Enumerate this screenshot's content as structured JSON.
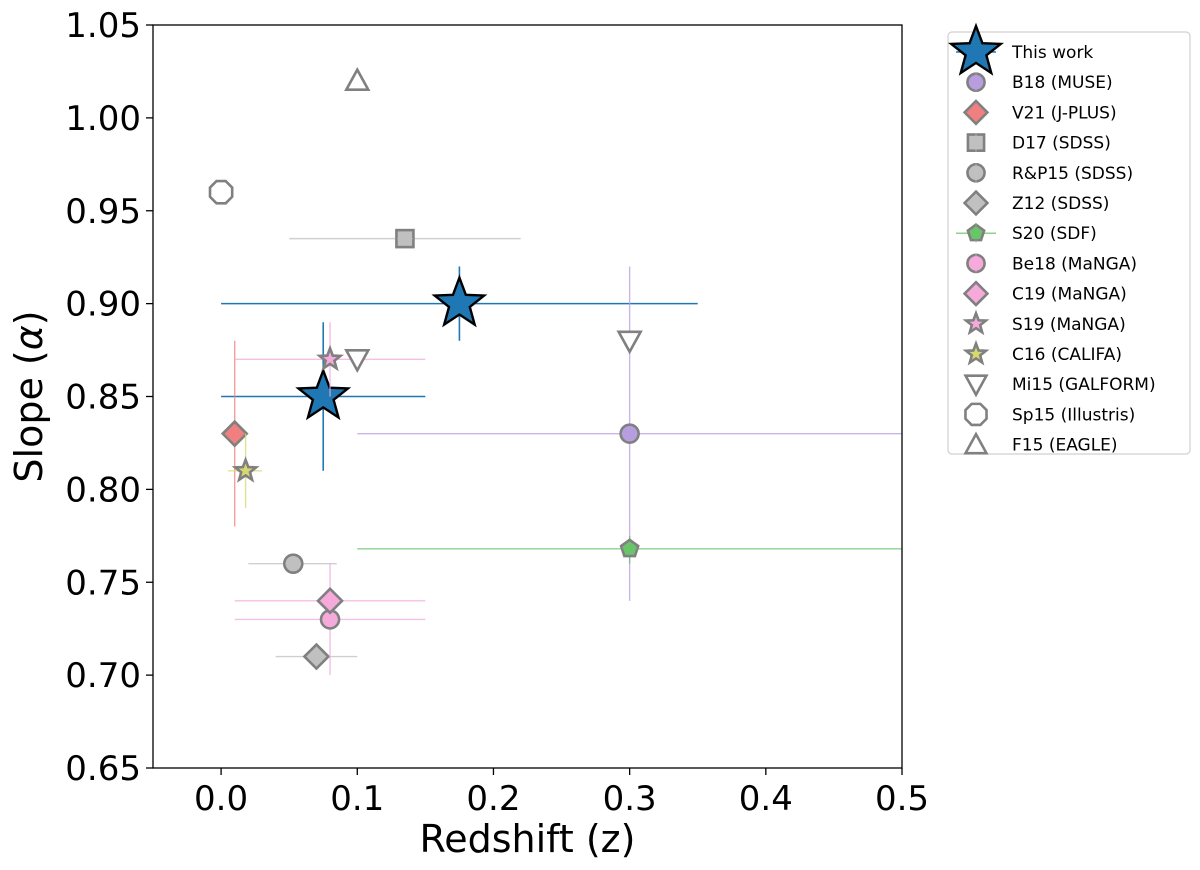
{
  "chart_data": {
    "type": "scatter",
    "title": "",
    "xlabel": "Redshift (z)",
    "ylabel": "Slope (α)",
    "ylabel_prefix": "Slope (",
    "ylabel_symbol": "α",
    "ylabel_suffix": ")",
    "xlim": [
      -0.05,
      0.5
    ],
    "ylim": [
      0.65,
      1.05
    ],
    "xticks": [
      0.0,
      0.1,
      0.2,
      0.3,
      0.4,
      0.5
    ],
    "xtick_labels": [
      "0.0",
      "0.1",
      "0.2",
      "0.3",
      "0.4",
      "0.5"
    ],
    "yticks": [
      0.65,
      0.7,
      0.75,
      0.8,
      0.85,
      0.9,
      0.95,
      1.0,
      1.05
    ],
    "ytick_labels": [
      "0.65",
      "0.70",
      "0.75",
      "0.80",
      "0.85",
      "0.90",
      "0.95",
      "1.00",
      "1.05"
    ],
    "grid": false,
    "legend_position": "outside-right-top",
    "series": [
      {
        "name": "This work",
        "marker": "star",
        "size": "large",
        "color": "#1f77b4",
        "edge": "#000000",
        "points": [
          {
            "x": 0.175,
            "y": 0.9,
            "xerr": [
              0.0,
              0.35
            ],
            "yerr": [
              0.88,
              0.92
            ]
          },
          {
            "x": 0.075,
            "y": 0.85,
            "xerr": [
              0.0,
              0.15
            ],
            "yerr": [
              0.81,
              0.89
            ]
          }
        ]
      },
      {
        "name": "B18 (MUSE)",
        "marker": "circle",
        "color": "#b79ee0",
        "edge": "#808080",
        "points": [
          {
            "x": 0.3,
            "y": 0.83,
            "xerr": [
              0.1,
              0.5
            ],
            "yerr": [
              0.74,
              0.92
            ]
          }
        ]
      },
      {
        "name": "V21 (J-PLUS)",
        "marker": "diamond",
        "color": "#f08080",
        "edge": "#808080",
        "points": [
          {
            "x": 0.01,
            "y": 0.83,
            "xerr": null,
            "yerr": [
              0.78,
              0.88
            ]
          }
        ]
      },
      {
        "name": "D17 (SDSS)",
        "marker": "square",
        "color": "#c0c0c0",
        "edge": "#808080",
        "points": [
          {
            "x": 0.135,
            "y": 0.935,
            "xerr": [
              0.05,
              0.22
            ],
            "yerr": null
          }
        ]
      },
      {
        "name": "R&P15 (SDSS)",
        "marker": "circle",
        "color": "#c0c0c0",
        "edge": "#808080",
        "points": [
          {
            "x": 0.053,
            "y": 0.76,
            "xerr": [
              0.02,
              0.085
            ],
            "yerr": null
          }
        ]
      },
      {
        "name": "Z12 (SDSS)",
        "marker": "diamond",
        "color": "#c0c0c0",
        "edge": "#808080",
        "points": [
          {
            "x": 0.07,
            "y": 0.71,
            "xerr": [
              0.04,
              0.1
            ],
            "yerr": null
          }
        ]
      },
      {
        "name": "S20 (SDF)",
        "marker": "pentagon",
        "color": "#6ac46a",
        "edge": "#808080",
        "points": [
          {
            "x": 0.3,
            "y": 0.768,
            "xerr": [
              0.1,
              0.5
            ],
            "yerr": [
              0.76,
              0.775
            ]
          }
        ]
      },
      {
        "name": "Be18 (MaNGA)",
        "marker": "circle",
        "color": "#f5aadb",
        "edge": "#808080",
        "points": [
          {
            "x": 0.08,
            "y": 0.73,
            "xerr": [
              0.01,
              0.15
            ],
            "yerr": [
              0.7,
              0.76
            ]
          }
        ]
      },
      {
        "name": "C19 (MaNGA)",
        "marker": "diamond",
        "color": "#f5aadb",
        "edge": "#808080",
        "points": [
          {
            "x": 0.08,
            "y": 0.74,
            "xerr": [
              0.01,
              0.15
            ],
            "yerr": null
          }
        ]
      },
      {
        "name": "S19 (MaNGA)",
        "marker": "star",
        "size": "small",
        "color": "#f5aadb",
        "edge": "#808080",
        "points": [
          {
            "x": 0.08,
            "y": 0.87,
            "xerr": [
              0.01,
              0.15
            ],
            "yerr": [
              0.85,
              0.89
            ]
          }
        ]
      },
      {
        "name": "C16 (CALIFA)",
        "marker": "star",
        "size": "small",
        "color": "#d8d870",
        "edge": "#808080",
        "points": [
          {
            "x": 0.018,
            "y": 0.81,
            "xerr": [
              0.005,
              0.03
            ],
            "yerr": [
              0.79,
              0.83
            ]
          }
        ]
      },
      {
        "name": "Mi15 (GALFORM)",
        "marker": "triangle-down",
        "color": "#ffffff",
        "edge": "#808080",
        "points": [
          {
            "x": 0.1,
            "y": 0.87,
            "xerr": null,
            "yerr": null
          },
          {
            "x": 0.3,
            "y": 0.88,
            "xerr": null,
            "yerr": null
          }
        ]
      },
      {
        "name": "Sp15 (Illustris)",
        "marker": "octagon",
        "color": "#ffffff",
        "edge": "#808080",
        "points": [
          {
            "x": 0.0,
            "y": 0.96,
            "xerr": null,
            "yerr": null
          }
        ]
      },
      {
        "name": "F15 (EAGLE)",
        "marker": "triangle-up",
        "color": "#ffffff",
        "edge": "#808080",
        "points": [
          {
            "x": 0.1,
            "y": 1.02,
            "xerr": null,
            "yerr": null
          }
        ]
      }
    ]
  }
}
